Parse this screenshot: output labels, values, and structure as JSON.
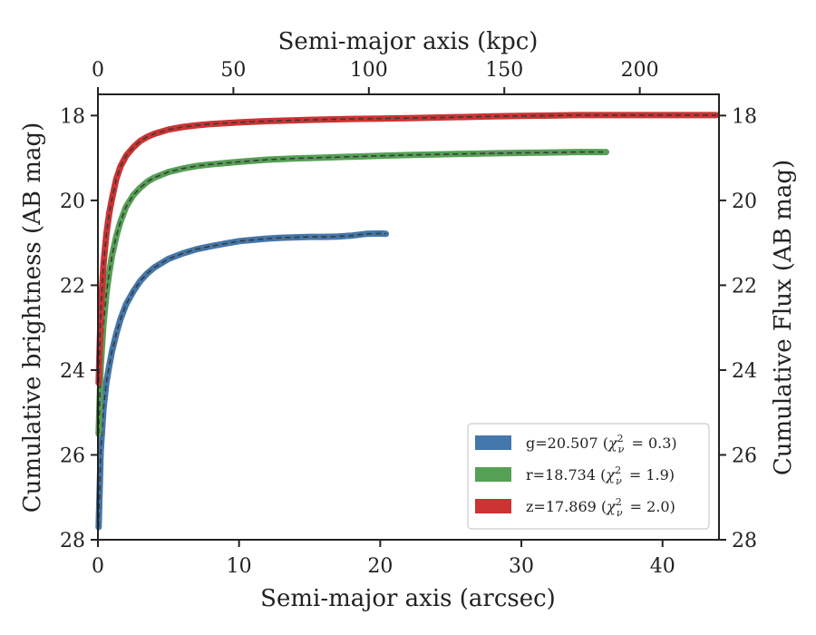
{
  "chart_data": {
    "type": "line",
    "xlabel": "Semi-major axis (arcsec)",
    "ylabel": "Cumulative brightness (AB mag)",
    "ylabel_right": "Cumulative Flux (AB mag)",
    "xlabel_top": "Semi-major axis (kpc)",
    "xlim": [
      0,
      44
    ],
    "ylim": [
      28,
      17.5
    ],
    "y_inverted": true,
    "x_ticks": [
      0,
      10,
      20,
      30,
      40
    ],
    "y_ticks": [
      18,
      20,
      22,
      24,
      26,
      28
    ],
    "top_x_ticks": [
      0,
      50,
      100,
      150,
      200
    ],
    "top_axis_kpc_per_arcsec": 5.21,
    "grid": false,
    "legend_position": "lower-right",
    "series": [
      {
        "name": "g=20.507 (χ²ν = 0.3)",
        "legend_main": "g=20.507 (",
        "legend_sub": "ν",
        "legend_val": "= 0.3)",
        "color": "#4477aa",
        "x": [
          0.05,
          0.2,
          0.4,
          0.6,
          0.8,
          1.0,
          1.3,
          1.6,
          2.0,
          2.5,
          3.0,
          3.5,
          4.0,
          5.0,
          6.0,
          7.0,
          8.0,
          9.0,
          10.0,
          11.0,
          12.0,
          13.0,
          14.0,
          15.0,
          16.0,
          17.0,
          18.0,
          19.0,
          20.0,
          20.4
        ],
        "y": [
          27.7,
          25.9,
          24.9,
          24.3,
          23.9,
          23.55,
          23.15,
          22.8,
          22.45,
          22.15,
          21.9,
          21.72,
          21.58,
          21.38,
          21.25,
          21.15,
          21.08,
          21.02,
          20.96,
          20.93,
          20.9,
          20.88,
          20.87,
          20.86,
          20.86,
          20.85,
          20.83,
          20.79,
          20.78,
          20.79
        ]
      },
      {
        "name": "r=18.734 (χ²ν = 1.9)",
        "legend_main": "r=18.734 (",
        "legend_sub": "ν",
        "legend_val": "= 1.9)",
        "color": "#55a055",
        "x": [
          0.05,
          0.2,
          0.4,
          0.6,
          0.8,
          1.0,
          1.3,
          1.6,
          2.0,
          2.5,
          3.0,
          3.5,
          4.0,
          5.0,
          6.0,
          7.0,
          8.0,
          10.0,
          12.0,
          14.0,
          16.0,
          18.0,
          20.0,
          22.0,
          25.0,
          28.0,
          30.0,
          32.0,
          34.0,
          36.0
        ],
        "y": [
          25.5,
          23.9,
          22.9,
          22.2,
          21.7,
          21.3,
          20.85,
          20.5,
          20.15,
          19.88,
          19.7,
          19.56,
          19.46,
          19.33,
          19.25,
          19.19,
          19.15,
          19.09,
          19.04,
          19.01,
          18.99,
          18.97,
          18.95,
          18.93,
          18.91,
          18.89,
          18.88,
          18.87,
          18.86,
          18.86
        ]
      },
      {
        "name": "z=17.869 (χ²ν = 2.0)",
        "legend_main": "z=17.869 (",
        "legend_sub": "ν",
        "legend_val": "= 2.0)",
        "color": "#cc3333",
        "x": [
          0.05,
          0.2,
          0.4,
          0.6,
          0.8,
          1.0,
          1.3,
          1.6,
          2.0,
          2.5,
          3.0,
          3.5,
          4.0,
          5.0,
          6.0,
          7.0,
          8.0,
          10.0,
          12.0,
          15.0,
          18.0,
          20.0,
          22.0,
          25.0,
          28.0,
          30.0,
          32.0,
          34.0,
          36.0,
          38.0,
          40.0,
          42.0,
          43.8
        ],
        "y": [
          24.3,
          22.6,
          21.5,
          20.8,
          20.3,
          19.95,
          19.5,
          19.2,
          18.95,
          18.75,
          18.6,
          18.5,
          18.43,
          18.33,
          18.27,
          18.23,
          18.2,
          18.16,
          18.13,
          18.1,
          18.08,
          18.07,
          18.06,
          18.04,
          18.02,
          18.01,
          18.0,
          17.99,
          17.99,
          17.99,
          17.99,
          17.99,
          17.99
        ]
      }
    ]
  }
}
